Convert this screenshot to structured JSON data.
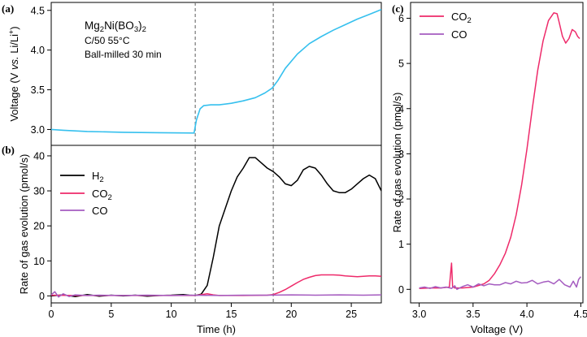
{
  "colors": {
    "voltage": "#36c0ee",
    "h2": "#000000",
    "co2": "#ee2a6a",
    "co": "#a55cc0",
    "vline": "#777777"
  },
  "panel_labels": {
    "a": "(a)",
    "b": "(b)",
    "c": "(c)"
  },
  "annotation": {
    "formula_parts": [
      "Mg",
      "2",
      "Ni(BO",
      "3",
      ")",
      "2"
    ],
    "line2": "C/50 55°C",
    "line3": "Ball-milled 30 min"
  },
  "chart_data": [
    {
      "id": "a",
      "type": "line",
      "xlim": [
        0,
        27.5
      ],
      "ylim": [
        2.8,
        4.6
      ],
      "yticks": [
        "3.0",
        "3.5",
        "4.0",
        "4.5"
      ],
      "ylabel_parts": [
        "Voltage (V ",
        "vs.",
        " Li/Li",
        "+",
        ")"
      ],
      "vlines": [
        12,
        18.5
      ],
      "series": [
        {
          "key": "voltage",
          "x": [
            0,
            1,
            3,
            6,
            9,
            11.9,
            12.1,
            12.4,
            12.7,
            13.3,
            14,
            15,
            16,
            17,
            17.8,
            18.4,
            18.9,
            19.5,
            20.5,
            21.5,
            22.5,
            23.5,
            24.5,
            25.5,
            26.5,
            27.5
          ],
          "y": [
            3.0,
            2.99,
            2.975,
            2.965,
            2.96,
            2.955,
            3.12,
            3.26,
            3.3,
            3.31,
            3.31,
            3.33,
            3.36,
            3.4,
            3.46,
            3.52,
            3.62,
            3.77,
            3.95,
            4.08,
            4.17,
            4.25,
            4.32,
            4.39,
            4.45,
            4.51
          ]
        }
      ]
    },
    {
      "id": "b",
      "type": "line",
      "xlim": [
        0,
        27.5
      ],
      "ylim": [
        -2,
        43
      ],
      "xticks": [
        "0",
        "5",
        "10",
        "15",
        "20",
        "25"
      ],
      "yticks": [
        "0",
        "10",
        "20",
        "30",
        "40"
      ],
      "xlabel": "Time (h)",
      "ylabel": "Rate of gas evolution (pmol/s)",
      "vlines": [
        12,
        18.5
      ],
      "legend_position": "upper-left",
      "series": [
        {
          "key": "h2",
          "name_parts": [
            "H",
            "2"
          ],
          "x": [
            0,
            1,
            2,
            3,
            4,
            5,
            6,
            7,
            8,
            9,
            10,
            11,
            11.5,
            12,
            12.5,
            13,
            13.5,
            14,
            14.5,
            15,
            15.5,
            16,
            16.5,
            17,
            17.5,
            18,
            18.5,
            19,
            19.5,
            20,
            20.5,
            21,
            21.5,
            22,
            22.5,
            23,
            23.5,
            24,
            24.5,
            25,
            25.5,
            26,
            26.5,
            27,
            27.5
          ],
          "y": [
            0,
            0.3,
            -0.2,
            0.4,
            -0.1,
            0.2,
            0,
            0.2,
            -0.1,
            0.1,
            0.2,
            0.4,
            0.2,
            0.1,
            0.5,
            3,
            11,
            20,
            25,
            30,
            34,
            36.5,
            39.5,
            39.5,
            38,
            36.5,
            35.5,
            34,
            32,
            31.5,
            33,
            36,
            37,
            36.5,
            34.5,
            32,
            30,
            29.5,
            29.5,
            30.5,
            32,
            33.5,
            34.5,
            33.5,
            30
          ]
        },
        {
          "key": "co2",
          "name_parts": [
            "CO",
            "2"
          ],
          "x": [
            0,
            2,
            4,
            6,
            8,
            10,
            12,
            13,
            13.5,
            14,
            16,
            18,
            18.5,
            19,
            19.5,
            20,
            20.5,
            21,
            21.5,
            22,
            22.5,
            23,
            23.5,
            24,
            24.5,
            25,
            25.5,
            26,
            26.5,
            27,
            27.5
          ],
          "y": [
            0.2,
            0.1,
            0.1,
            0.1,
            0.1,
            0.1,
            0.1,
            0.6,
            0.3,
            0.1,
            0.1,
            0.2,
            0.4,
            1.0,
            1.8,
            2.8,
            3.8,
            4.7,
            5.3,
            5.8,
            6.0,
            6.0,
            6.0,
            5.9,
            5.7,
            5.6,
            5.5,
            5.6,
            5.7,
            5.7,
            5.6
          ]
        },
        {
          "key": "co",
          "name_parts": [
            "CO"
          ],
          "x": [
            0,
            0.3,
            0.6,
            1,
            1.5,
            2,
            3,
            4,
            6,
            8,
            10,
            12,
            14,
            16,
            18,
            20,
            22,
            24,
            26,
            27.5
          ],
          "y": [
            0.3,
            1.2,
            -0.3,
            0.6,
            -0.2,
            0.3,
            0.1,
            0.2,
            0.1,
            0.2,
            0.1,
            0.2,
            0.1,
            0.2,
            0.2,
            0.3,
            0.2,
            0.3,
            0.2,
            0.3
          ]
        }
      ]
    },
    {
      "id": "c",
      "type": "line",
      "xlim": [
        2.92,
        4.52
      ],
      "ylim": [
        -0.3,
        6.35
      ],
      "xticks": [
        "3.0",
        "3.5",
        "4.0",
        "4.5"
      ],
      "yticks": [
        "0",
        "1",
        "2",
        "3",
        "4",
        "5",
        "6"
      ],
      "xlabel": "Voltage (V)",
      "ylabel": "Rate of gas evolution (pmol/s)",
      "legend_position": "upper-left",
      "series": [
        {
          "key": "co2",
          "name_parts": [
            "CO",
            "2"
          ],
          "x": [
            3.0,
            3.1,
            3.2,
            3.28,
            3.3,
            3.31,
            3.33,
            3.4,
            3.5,
            3.6,
            3.65,
            3.7,
            3.75,
            3.8,
            3.85,
            3.9,
            3.95,
            4.0,
            4.05,
            4.1,
            4.15,
            4.2,
            4.25,
            4.28,
            4.3,
            4.33,
            4.36,
            4.39,
            4.42,
            4.45,
            4.47,
            4.49
          ],
          "y": [
            0.02,
            0.03,
            0.03,
            0.05,
            0.58,
            0.06,
            0.03,
            0.03,
            0.05,
            0.12,
            0.2,
            0.35,
            0.55,
            0.8,
            1.15,
            1.65,
            2.3,
            3.1,
            4.0,
            4.85,
            5.5,
            5.95,
            6.12,
            6.1,
            5.9,
            5.6,
            5.45,
            5.55,
            5.75,
            5.7,
            5.6,
            5.55
          ]
        },
        {
          "key": "co",
          "name_parts": [
            "CO"
          ],
          "x": [
            3.0,
            3.05,
            3.1,
            3.15,
            3.2,
            3.25,
            3.3,
            3.33,
            3.35,
            3.4,
            3.45,
            3.5,
            3.55,
            3.6,
            3.65,
            3.7,
            3.75,
            3.8,
            3.85,
            3.9,
            3.95,
            4.0,
            4.05,
            4.1,
            4.15,
            4.2,
            4.25,
            4.3,
            4.35,
            4.4,
            4.43,
            4.46,
            4.48,
            4.5
          ],
          "y": [
            0.03,
            0.05,
            0.02,
            0.06,
            0.03,
            0.05,
            0.02,
            0.08,
            0.0,
            0.06,
            0.1,
            0.05,
            0.12,
            0.08,
            0.12,
            0.1,
            0.1,
            0.15,
            0.12,
            0.18,
            0.14,
            0.15,
            0.2,
            0.12,
            0.16,
            0.18,
            0.12,
            0.22,
            0.1,
            0.05,
            0.18,
            0.05,
            0.22,
            0.28
          ]
        }
      ]
    }
  ]
}
